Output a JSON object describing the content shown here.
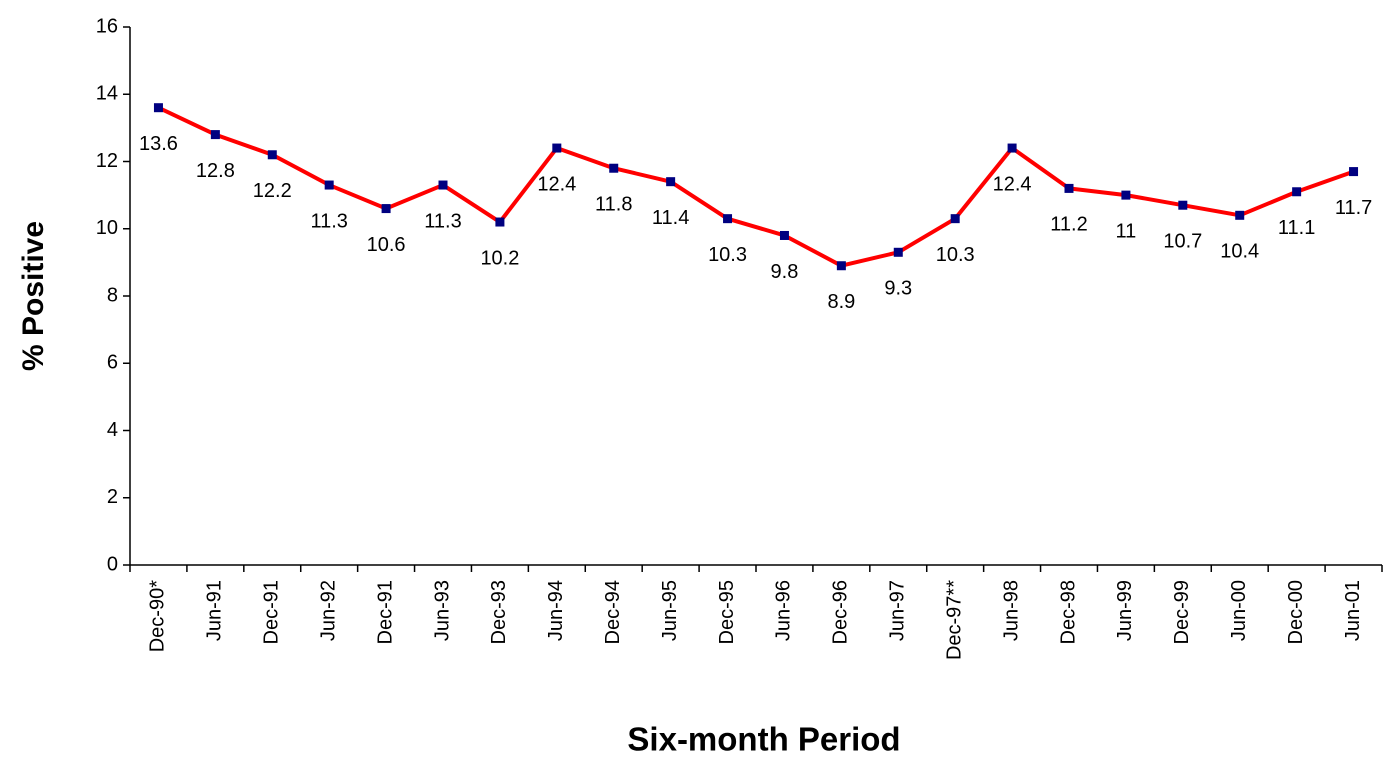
{
  "chart_data": {
    "type": "line",
    "x_label": "Six-month Period",
    "y_label": "% Positive",
    "categories": [
      "Dec-90*",
      "Jun-91",
      "Dec-91",
      "Jun-92",
      "Dec-91",
      "Jun-93",
      "Dec-93",
      "Jun-94",
      "Dec-94",
      "Jun-95",
      "Dec-95",
      "Jun-96",
      "Dec-96",
      "Jun-97",
      "Dec-97**",
      "Jun-98",
      "Dec-98",
      "Jun-99",
      "Dec-99",
      "Jun-00",
      "Dec-00",
      "Jun-01"
    ],
    "values": [
      13.6,
      12.8,
      12.2,
      11.3,
      10.6,
      11.3,
      10.2,
      12.4,
      11.8,
      11.4,
      10.3,
      9.8,
      8.9,
      9.3,
      10.3,
      12.4,
      11.2,
      11,
      10.7,
      10.4,
      11.1,
      11.7
    ],
    "color": "#ff0000",
    "marker_color": "#000080",
    "ylim": [
      0,
      16
    ],
    "yticks": [
      0,
      2,
      4,
      6,
      8,
      10,
      12,
      14,
      16
    ],
    "grid": false
  }
}
